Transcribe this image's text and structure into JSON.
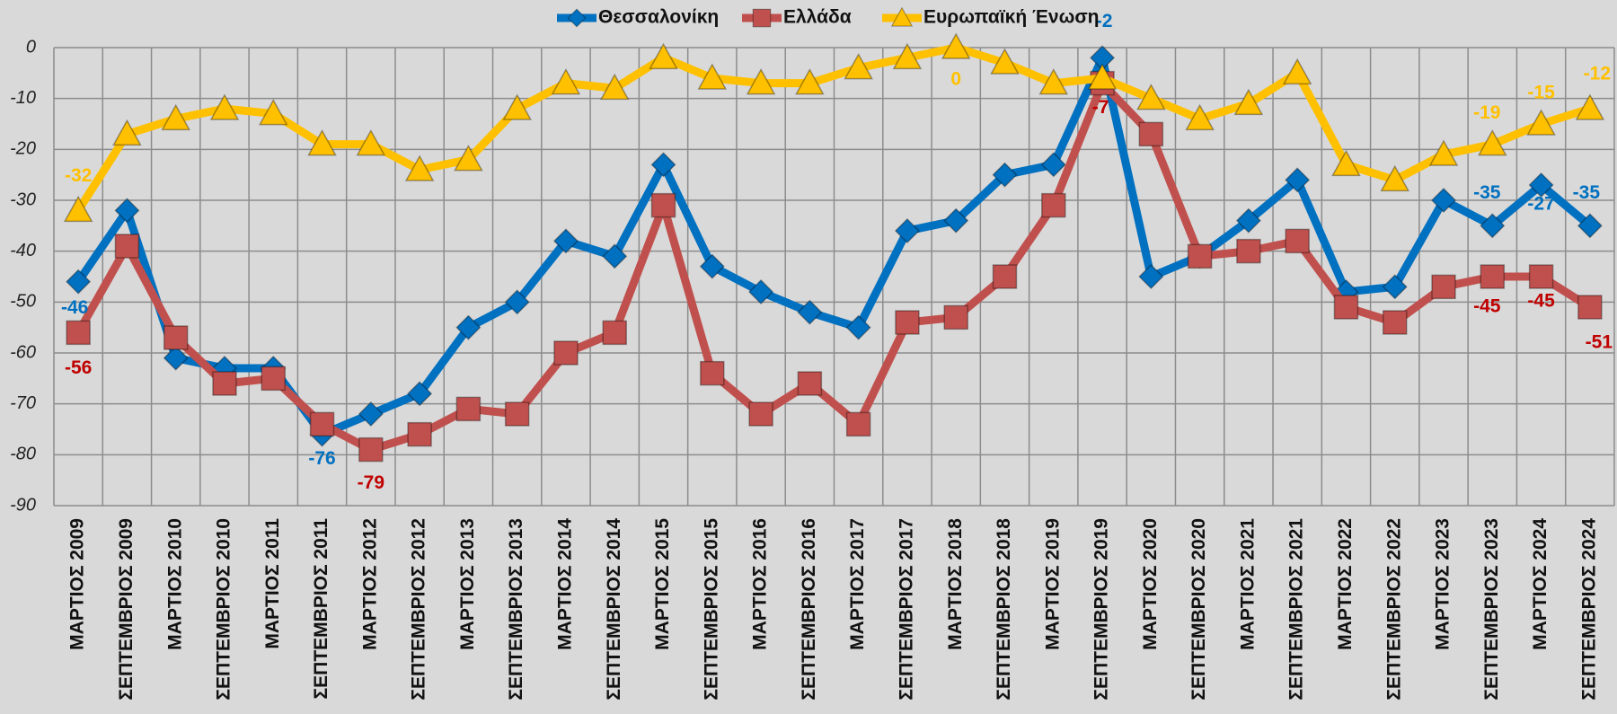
{
  "chart_data": {
    "type": "line",
    "categories": [
      "ΜΑΡΤΙΟΣ 2009",
      "ΣΕΠΤΕΜΒΡΙΟΣ 2009",
      "ΜΑΡΤΙΟΣ 2010",
      "ΣΕΠΤΕΜΒΡΙΟΣ 2010",
      "ΜΑΡΤΙΟΣ 2011",
      "ΣΕΠΤΕΜΒΡΙΟΣ 2011",
      "ΜΑΡΤΙΟΣ 2012",
      "ΣΕΠΤΕΜΒΡΙΟΣ 2012",
      "ΜΑΡΤΙΟΣ 2013",
      "ΣΕΠΤΕΜΒΡΙΟΣ 2013",
      "ΜΑΡΤΙΟΣ 2014",
      "ΣΕΠΤΕΜΒΡΙΟΣ 2014",
      "ΜΑΡΤΙΟΣ 2015",
      "ΣΕΠΤΕΜΒΡΙΟΣ 2015",
      "ΜΑΡΤΙΟΣ 2016",
      "ΣΕΠΤΕΜΒΡΙΟΣ 2016",
      "ΜΑΡΤΙΟΣ 2017",
      "ΣΕΠΤΕΜΒΡΙΟΣ 2017",
      "ΜΑΡΤΙΟΣ 2018",
      "ΣΕΠΤΕΜΒΡΙΟΣ 2018",
      "ΜΑΡΤΙΟΣ 2019",
      "ΣΕΠΤΕΜΒΡΙΟΣ 2019",
      "ΜΑΡΤΙΟΣ 2020",
      "ΣΕΠΤΕΜΒΡΙΟΣ 2020",
      "ΜΑΡΤΙΟΣ 2021",
      "ΣΕΠΤΕΜΒΡΙΟΣ 2021",
      "ΜΑΡΤΙΟΣ 2022",
      "ΣΕΠΤΕΜΒΡΙΟΣ 2022",
      "ΜΑΡΤΙΟΣ 2023",
      "ΣΕΠΤΕΜΒΡΙΟΣ 2023",
      "ΜΑΡΤΙΟΣ 2024",
      "ΣΕΠΤΕΜΒΡΙΟΣ 2024"
    ],
    "series": [
      {
        "name": "Θεσσαλονίκη",
        "color": "#0070c0",
        "marker": "diamond",
        "label_color": "#0070c0",
        "values": [
          -46,
          -32,
          -61,
          -63,
          -63,
          -76,
          -72,
          -68,
          -55,
          -50,
          -38,
          -41,
          -23,
          -43,
          -48,
          -52,
          -55,
          -36,
          -34,
          -25,
          -23,
          -2,
          -45,
          -41,
          -34,
          -26,
          -48,
          -47,
          -30,
          -35,
          -27,
          -35
        ],
        "value_labels": [
          "-46",
          null,
          null,
          null,
          null,
          "-76",
          null,
          null,
          null,
          null,
          null,
          null,
          null,
          null,
          null,
          null,
          null,
          null,
          null,
          null,
          null,
          "-2",
          null,
          null,
          null,
          null,
          null,
          null,
          null,
          "-35",
          "-27",
          "-35"
        ]
      },
      {
        "name": "Ελλάδα",
        "color": "#c0504d",
        "marker": "square",
        "label_color": "#c00000",
        "values": [
          -56,
          -39,
          -57,
          -66,
          -65,
          -74,
          -79,
          -76,
          -71,
          -72,
          -60,
          -56,
          -31,
          -64,
          -72,
          -66,
          -74,
          -54,
          -53,
          -45,
          -31,
          -7,
          -17,
          -41,
          -40,
          -38,
          -51,
          -54,
          -47,
          -45,
          -45,
          -51
        ],
        "value_labels": [
          "-56",
          null,
          null,
          null,
          null,
          null,
          "-79",
          null,
          null,
          null,
          null,
          null,
          null,
          null,
          null,
          null,
          null,
          null,
          null,
          null,
          null,
          "-7",
          null,
          null,
          null,
          null,
          null,
          null,
          null,
          "-45",
          "-45",
          "-51"
        ]
      },
      {
        "name": "Ευρωπαϊκή Ένωση",
        "color": "#ffc000",
        "marker": "triangle",
        "label_color": "#ffc000",
        "values": [
          -32,
          -17,
          -14,
          -12,
          -13,
          -19,
          -19,
          -24,
          -22,
          -12,
          -7,
          -8,
          -2,
          -6,
          -7,
          -7,
          -4,
          -2,
          0,
          -3,
          -7,
          -6,
          -10,
          -14,
          -11,
          -5,
          -23,
          -26,
          -21,
          -19,
          -15,
          -12
        ],
        "value_labels": [
          "-32",
          null,
          null,
          null,
          null,
          null,
          null,
          null,
          null,
          null,
          null,
          null,
          null,
          null,
          null,
          null,
          null,
          null,
          "0",
          null,
          null,
          null,
          null,
          null,
          null,
          null,
          null,
          null,
          null,
          "-19",
          "-15",
          "-12"
        ]
      }
    ],
    "ylim": [
      -90,
      0
    ],
    "yticks": [
      0,
      -10,
      -20,
      -30,
      -40,
      -50,
      -60,
      -70,
      -80,
      -90
    ],
    "grid": true,
    "legend": "top"
  }
}
